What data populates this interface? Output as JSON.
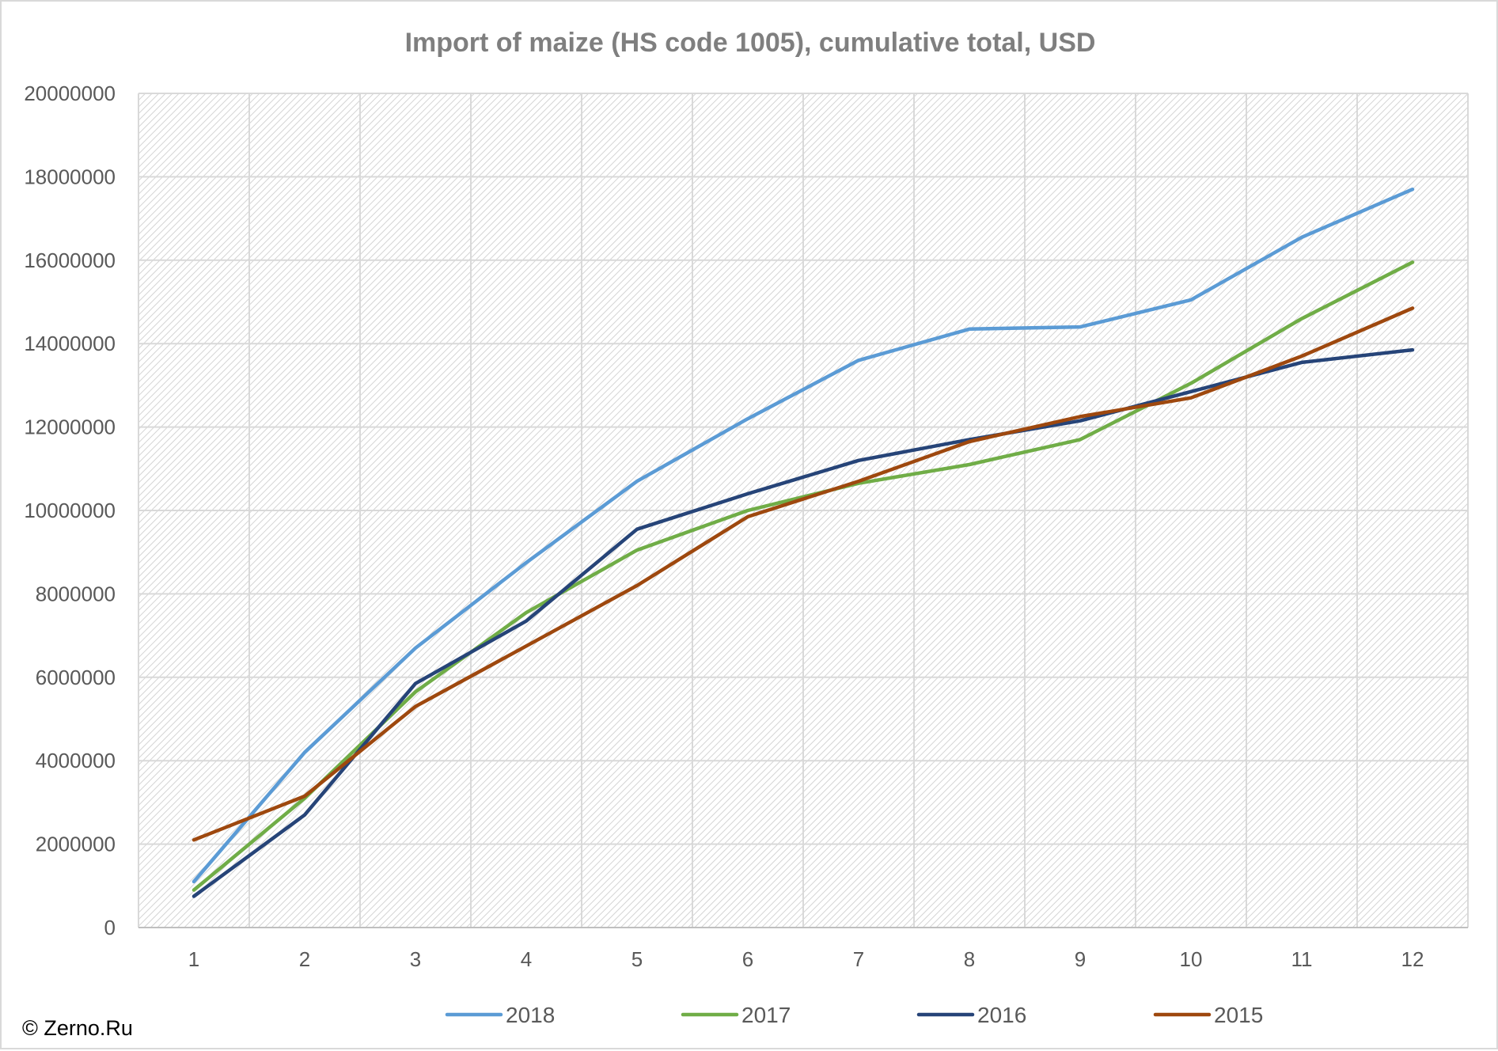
{
  "chart_data": {
    "type": "line",
    "title": "Import of maize (HS code 1005), cumulative total, USD",
    "xlabel": "",
    "ylabel": "",
    "categories": [
      "1",
      "2",
      "3",
      "4",
      "5",
      "6",
      "7",
      "8",
      "9",
      "10",
      "11",
      "12"
    ],
    "ylim": [
      0,
      20000000
    ],
    "yticks": [
      "0",
      "2000000",
      "4000000",
      "6000000",
      "8000000",
      "10000000",
      "12000000",
      "14000000",
      "16000000",
      "18000000",
      "20000000"
    ],
    "grid": true,
    "legend_position": "bottom",
    "series": [
      {
        "name": "2018",
        "color": "#5b9bd5",
        "values": [
          1100000,
          4200000,
          6700000,
          8750000,
          10700000,
          12200000,
          13600000,
          14350000,
          14400000,
          15050000,
          16550000,
          17700000
        ]
      },
      {
        "name": "2017",
        "color": "#70ad47",
        "values": [
          900000,
          3100000,
          5650000,
          7550000,
          9050000,
          10000000,
          10650000,
          11100000,
          11700000,
          13050000,
          14600000,
          15950000
        ]
      },
      {
        "name": "2016",
        "color": "#264478",
        "values": [
          750000,
          2700000,
          5850000,
          7350000,
          9550000,
          10400000,
          11200000,
          11700000,
          12150000,
          12850000,
          13550000,
          13850000
        ]
      },
      {
        "name": "2015",
        "color": "#9e480e",
        "values": [
          2100000,
          3150000,
          5300000,
          6750000,
          8200000,
          9850000,
          10700000,
          11650000,
          12250000,
          12700000,
          13700000,
          14850000
        ]
      }
    ]
  },
  "credit": "© Zerno.Ru"
}
